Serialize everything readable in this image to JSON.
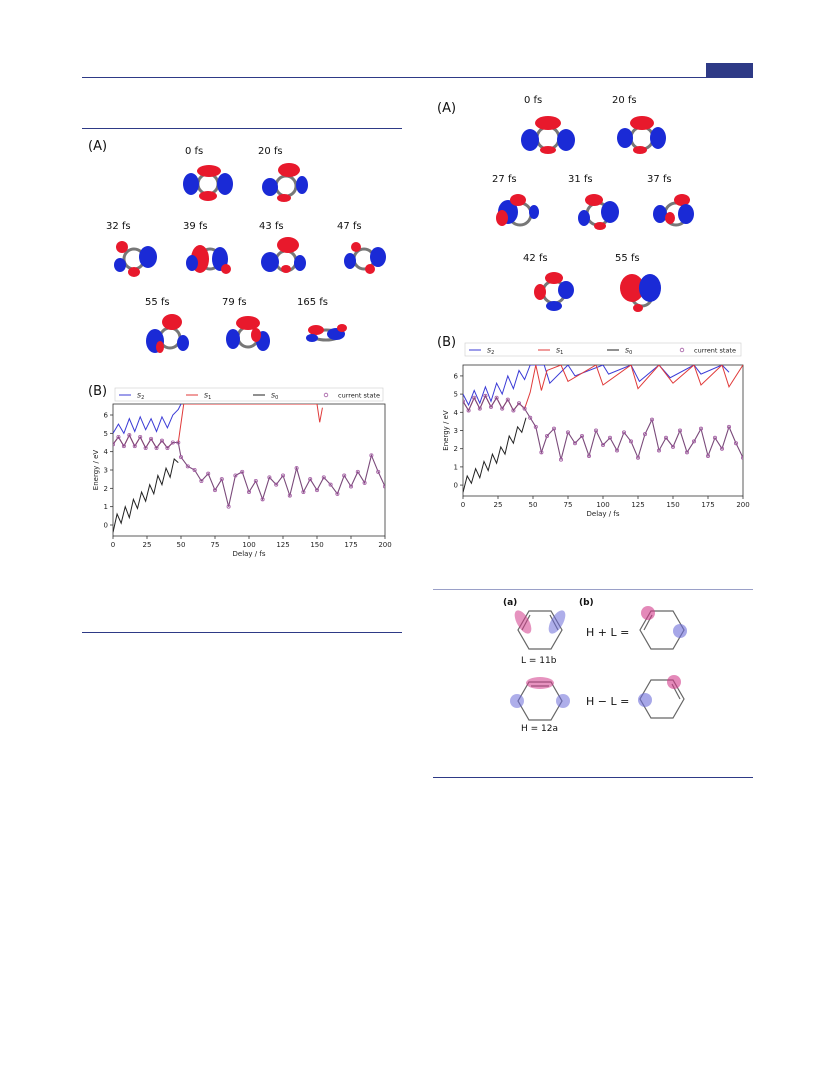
{
  "figure_left": {
    "panel_a": {
      "label": "(A)",
      "times": [
        "0 fs",
        "20 fs",
        "32 fs",
        "39 fs",
        "43 fs",
        "47 fs",
        "55 fs",
        "79 fs",
        "165 fs"
      ]
    },
    "panel_b": {
      "label": "(B)"
    }
  },
  "figure_right": {
    "panel_a": {
      "label": "(A)",
      "times": [
        "0 fs",
        "20 fs",
        "27 fs",
        "31 fs",
        "37 fs",
        "42 fs",
        "55 fs"
      ]
    },
    "panel_b": {
      "label": "(B)"
    }
  },
  "scheme": {
    "label_a": "(a)",
    "label_b": "(b)",
    "orbital_l": "L = 11b",
    "orbital_h": "H = 12a",
    "combo_plus": "H + L =",
    "combo_minus": "H − L ="
  },
  "colors": {
    "accent": "#2e3a86",
    "s2": "#3b3bd6",
    "s1": "#e03a3a",
    "s0": "#222222",
    "current": "#a45ca4",
    "lobe_red": "#e8192c",
    "lobe_blue": "#1a2ad6"
  },
  "chart_data": [
    {
      "type": "line",
      "xlabel": "Delay / fs",
      "ylabel": "Energy / eV",
      "xlim": [
        0,
        200
      ],
      "ylim": [
        -0.6,
        6.6
      ],
      "xticks": [
        "0",
        "25",
        "50",
        "75",
        "100",
        "125",
        "150",
        "175",
        "200"
      ],
      "yticks": [
        "0",
        "1",
        "2",
        "3",
        "4",
        "5",
        "6"
      ],
      "legend": "top",
      "series": [
        {
          "name": "S₂",
          "symbol": "S",
          "sub": "2",
          "color": "#3b3bd6",
          "x": [
            0,
            4,
            8,
            12,
            16,
            20,
            24,
            28,
            32,
            36,
            40,
            44,
            48,
            50
          ],
          "y": [
            5.0,
            5.5,
            5.0,
            5.8,
            5.1,
            5.9,
            5.2,
            5.8,
            5.1,
            5.9,
            5.3,
            6.0,
            6.3,
            6.6
          ]
        },
        {
          "name": "S₁",
          "symbol": "S",
          "sub": "1",
          "color": "#e03a3a",
          "x": [
            0,
            4,
            8,
            12,
            16,
            20,
            24,
            28,
            32,
            36,
            40,
            44,
            48,
            52,
            150,
            152,
            154
          ],
          "y": [
            4.4,
            4.8,
            4.3,
            4.9,
            4.3,
            4.8,
            4.2,
            4.7,
            4.2,
            4.6,
            4.2,
            4.5,
            4.5,
            6.6,
            6.6,
            5.6,
            6.4
          ]
        },
        {
          "name": "S₀",
          "symbol": "S",
          "sub": "0",
          "color": "#222222",
          "x": [
            0,
            3,
            6,
            9,
            12,
            15,
            18,
            21,
            24,
            27,
            30,
            33,
            36,
            39,
            42,
            45,
            48
          ],
          "y": [
            -0.4,
            0.6,
            0.1,
            1.0,
            0.4,
            1.4,
            0.9,
            1.8,
            1.3,
            2.2,
            1.7,
            2.7,
            2.2,
            3.1,
            2.6,
            3.6,
            3.4
          ]
        },
        {
          "name": "current state",
          "symbol": "",
          "sub": "",
          "color": "#a45ca4",
          "marker": "o",
          "x": [
            0,
            4,
            8,
            12,
            16,
            20,
            24,
            28,
            32,
            36,
            40,
            44,
            48,
            50,
            55,
            60,
            65,
            70,
            75,
            80,
            85,
            90,
            95,
            100,
            105,
            110,
            115,
            120,
            125,
            130,
            135,
            140,
            145,
            150,
            155,
            160,
            165,
            170,
            175,
            180,
            185,
            190,
            195,
            200
          ],
          "y": [
            4.4,
            4.8,
            4.3,
            4.9,
            4.3,
            4.8,
            4.2,
            4.7,
            4.2,
            4.6,
            4.2,
            4.5,
            4.5,
            3.7,
            3.2,
            3.0,
            2.4,
            2.8,
            1.9,
            2.5,
            1.0,
            2.7,
            2.9,
            1.8,
            2.4,
            1.4,
            2.6,
            2.2,
            2.7,
            1.6,
            3.1,
            1.8,
            2.5,
            1.9,
            2.6,
            2.2,
            1.7,
            2.7,
            2.1,
            2.9,
            2.3,
            3.8,
            2.9,
            2.1
          ]
        }
      ]
    },
    {
      "type": "line",
      "xlabel": "Delay / fs",
      "ylabel": "Energy / eV",
      "xlim": [
        0,
        200
      ],
      "ylim": [
        -0.6,
        6.6
      ],
      "xticks": [
        "0",
        "25",
        "50",
        "75",
        "100",
        "125",
        "150",
        "175",
        "200"
      ],
      "yticks": [
        "0",
        "1",
        "2",
        "3",
        "4",
        "5",
        "6"
      ],
      "legend": "top",
      "series": [
        {
          "name": "S₂",
          "symbol": "S",
          "sub": "2",
          "color": "#3b3bd6",
          "x": [
            0,
            4,
            8,
            12,
            16,
            20,
            24,
            28,
            32,
            36,
            40,
            44,
            48,
            52,
            58,
            62,
            75,
            80,
            100,
            104,
            120,
            126,
            140,
            148,
            165,
            170,
            185,
            190
          ],
          "y": [
            5.0,
            4.4,
            5.2,
            4.5,
            5.4,
            4.6,
            5.6,
            5.0,
            6.0,
            5.3,
            6.3,
            5.8,
            6.6,
            6.6,
            6.6,
            5.6,
            6.6,
            6.0,
            6.6,
            6.1,
            6.6,
            5.7,
            6.6,
            5.9,
            6.6,
            6.1,
            6.6,
            6.2
          ]
        },
        {
          "name": "S₁",
          "symbol": "S",
          "sub": "1",
          "color": "#e03a3a",
          "x": [
            0,
            4,
            8,
            12,
            16,
            20,
            24,
            28,
            32,
            36,
            40,
            44,
            48,
            52,
            56,
            60,
            70,
            75,
            95,
            100,
            120,
            125,
            140,
            150,
            165,
            170,
            185,
            190,
            200
          ],
          "y": [
            4.6,
            4.1,
            4.8,
            4.2,
            4.9,
            4.3,
            4.8,
            4.2,
            4.7,
            4.1,
            4.5,
            4.2,
            5.1,
            6.6,
            5.2,
            6.3,
            6.6,
            5.7,
            6.6,
            5.5,
            6.6,
            5.3,
            6.6,
            5.6,
            6.6,
            5.5,
            6.6,
            5.4,
            6.6
          ]
        },
        {
          "name": "S₀",
          "symbol": "S",
          "sub": "0",
          "color": "#222222",
          "x": [
            0,
            3,
            6,
            9,
            12,
            15,
            18,
            21,
            24,
            27,
            30,
            33,
            36,
            39,
            42,
            45
          ],
          "y": [
            -0.4,
            0.5,
            0.1,
            0.9,
            0.4,
            1.3,
            0.8,
            1.7,
            1.2,
            2.1,
            1.7,
            2.7,
            2.3,
            3.2,
            2.9,
            3.7
          ]
        },
        {
          "name": "current state",
          "symbol": "",
          "sub": "",
          "color": "#a45ca4",
          "marker": "o",
          "x": [
            0,
            4,
            8,
            12,
            16,
            20,
            24,
            28,
            32,
            36,
            40,
            44,
            48,
            52,
            56,
            60,
            65,
            70,
            75,
            80,
            85,
            90,
            95,
            100,
            105,
            110,
            115,
            120,
            125,
            130,
            135,
            140,
            145,
            150,
            155,
            160,
            165,
            170,
            175,
            180,
            185,
            190,
            195,
            200
          ],
          "y": [
            4.6,
            4.1,
            4.8,
            4.2,
            4.9,
            4.3,
            4.8,
            4.2,
            4.7,
            4.1,
            4.5,
            4.2,
            3.7,
            3.2,
            1.8,
            2.7,
            3.1,
            1.4,
            2.9,
            2.3,
            2.7,
            1.6,
            3.0,
            2.2,
            2.6,
            1.9,
            2.9,
            2.4,
            1.5,
            2.8,
            3.6,
            1.9,
            2.6,
            2.1,
            3.0,
            1.8,
            2.4,
            3.1,
            1.6,
            2.6,
            2.0,
            3.2,
            2.3,
            1.5
          ]
        }
      ]
    }
  ]
}
